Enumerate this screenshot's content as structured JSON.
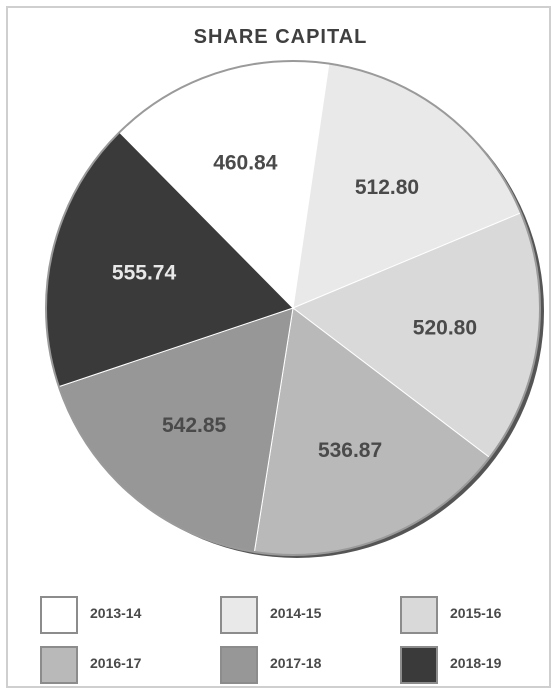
{
  "chart_data": {
    "type": "pie",
    "title": "SHARE CAPITAL",
    "slices": [
      {
        "label": "2013-14",
        "value": 460.84,
        "value_text": "460.84",
        "color": "#ffffff",
        "text_color": "#4a4a4a"
      },
      {
        "label": "2014-15",
        "value": 512.8,
        "value_text": "512.80",
        "color": "#e9e9e9",
        "text_color": "#4a4a4a"
      },
      {
        "label": "2015-16",
        "value": 520.8,
        "value_text": "520.80",
        "color": "#d9d9d9",
        "text_color": "#4a4a4a"
      },
      {
        "label": "2016-17",
        "value": 536.87,
        "value_text": "536.87",
        "color": "#b9b9b9",
        "text_color": "#4a4a4a"
      },
      {
        "label": "2017-18",
        "value": 542.85,
        "value_text": "542.85",
        "color": "#979797",
        "text_color": "#4a4a4a"
      },
      {
        "label": "2018-19",
        "value": 555.74,
        "value_text": "555.74",
        "color": "#3a3a3a",
        "text_color": "#e8e8e8"
      }
    ],
    "legend_position": "bottom"
  }
}
